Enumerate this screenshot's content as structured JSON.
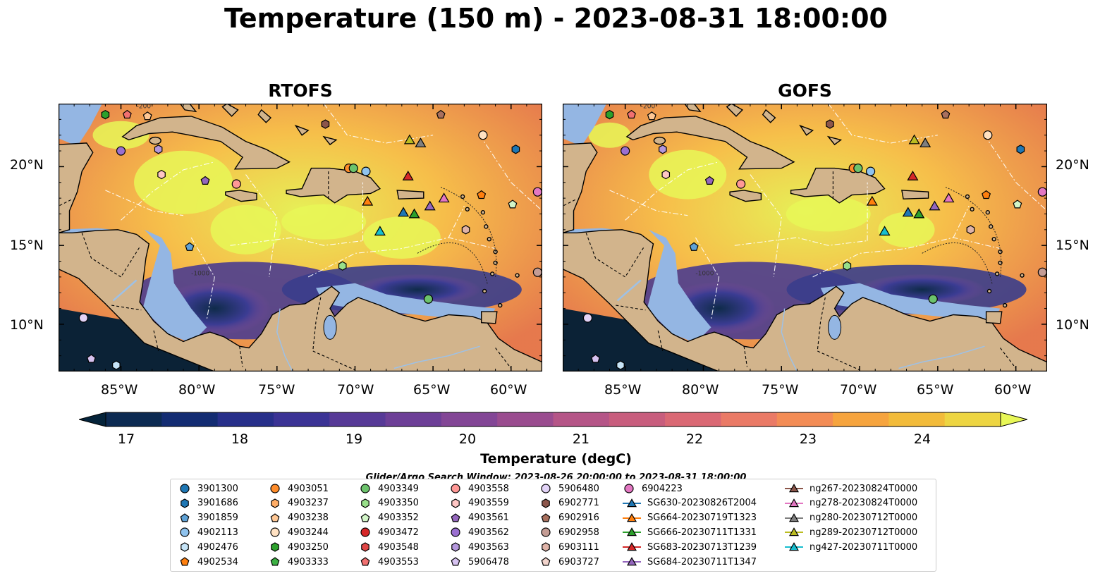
{
  "title": "Temperature (150 m) - 2023-08-31 18:00:00",
  "panels": [
    {
      "id": "rtofs",
      "title": "RTOFS"
    },
    {
      "id": "gofs",
      "title": "GOFS"
    }
  ],
  "map": {
    "lon_range": [
      -89,
      -58
    ],
    "lat_range": [
      7,
      24
    ],
    "lon_ticks": [
      "85°W",
      "80°W",
      "75°W",
      "70°W",
      "65°W",
      "60°W"
    ],
    "lat_ticks": [
      "20°N",
      "15°N",
      "10°N"
    ],
    "contour_labels": [
      "-200",
      "-1000",
      "-100"
    ],
    "colors": {
      "land": "#d2b48c",
      "shelf": "#94b6e3",
      "deep": "#0b2236",
      "hot": "#e8f757"
    }
  },
  "colorbar": {
    "label": "Temperature (degC)",
    "ticks": [
      "17",
      "18",
      "19",
      "20",
      "21",
      "22",
      "23",
      "24"
    ],
    "min": 16.5,
    "max": 24.5,
    "step": 0.5,
    "extend": "both"
  },
  "search_window": "Glider/Argo Search Window: 2023-08-26 20:00:00 to 2023-08-31 18:00:00",
  "legend": {
    "columns": [
      [
        {
          "label": "3901300",
          "marker": "circle",
          "color": "#1f77b4"
        },
        {
          "label": "3901686",
          "marker": "hexagon",
          "color": "#1f77b4"
        },
        {
          "label": "3901859",
          "marker": "pentagon",
          "color": "#5fa2d6"
        },
        {
          "label": "4902113",
          "marker": "circle",
          "color": "#8fc3ee"
        },
        {
          "label": "4902476",
          "marker": "hexagon",
          "color": "#c6e4f7"
        },
        {
          "label": "4902534",
          "marker": "pentagon",
          "color": "#ff7f0e"
        }
      ],
      [
        {
          "label": "4903051",
          "marker": "circle",
          "color": "#ff8c2a"
        },
        {
          "label": "4903237",
          "marker": "hexagon",
          "color": "#ffad66"
        },
        {
          "label": "4903238",
          "marker": "pentagon",
          "color": "#ffc794"
        },
        {
          "label": "4903244",
          "marker": "circle",
          "color": "#ffe1c2"
        },
        {
          "label": "4903250",
          "marker": "hexagon",
          "color": "#2ca02c"
        },
        {
          "label": "4903333",
          "marker": "pentagon",
          "color": "#3cb043"
        }
      ],
      [
        {
          "label": "4903349",
          "marker": "circle",
          "color": "#6cc36c"
        },
        {
          "label": "4903350",
          "marker": "hexagon",
          "color": "#98df8a"
        },
        {
          "label": "4903352",
          "marker": "pentagon",
          "color": "#d2f5c8"
        },
        {
          "label": "4903472",
          "marker": "circle",
          "color": "#d62728"
        },
        {
          "label": "4903548",
          "marker": "hexagon",
          "color": "#e04646"
        },
        {
          "label": "4903553",
          "marker": "pentagon",
          "color": "#f07070"
        }
      ],
      [
        {
          "label": "4903558",
          "marker": "circle",
          "color": "#ff9896"
        },
        {
          "label": "4903559",
          "marker": "hexagon",
          "color": "#ffc6c4"
        },
        {
          "label": "4903561",
          "marker": "pentagon",
          "color": "#9467bd"
        },
        {
          "label": "4903562",
          "marker": "circle",
          "color": "#9a6fd0"
        },
        {
          "label": "4903563",
          "marker": "hexagon",
          "color": "#b497dc"
        },
        {
          "label": "5906478",
          "marker": "pentagon",
          "color": "#d6c2f0"
        }
      ],
      [
        {
          "label": "5906480",
          "marker": "circle",
          "color": "#e2d3f7"
        },
        {
          "label": "6902771",
          "marker": "hexagon",
          "color": "#8c564b"
        },
        {
          "label": "6902916",
          "marker": "pentagon",
          "color": "#a8705e"
        },
        {
          "label": "6902958",
          "marker": "circle",
          "color": "#c49c94"
        },
        {
          "label": "6903111",
          "marker": "hexagon",
          "color": "#dfb3a8"
        },
        {
          "label": "6903727",
          "marker": "pentagon",
          "color": "#f2d4cc"
        }
      ],
      [
        {
          "label": "6904223",
          "marker": "circle",
          "color": "#e377c2"
        },
        {
          "label": "SG630-20230826T2004",
          "marker": "triangle",
          "color": "#1f77b4"
        },
        {
          "label": "SG664-20230719T1323",
          "marker": "triangle",
          "color": "#ff7f0e"
        },
        {
          "label": "SG666-20230711T1331",
          "marker": "triangle",
          "color": "#2ca02c"
        },
        {
          "label": "SG683-20230713T1239",
          "marker": "triangle",
          "color": "#d62728"
        },
        {
          "label": "SG684-20230711T1347",
          "marker": "triangle",
          "color": "#9467bd"
        }
      ],
      [
        {
          "label": "ng267-20230824T0000",
          "marker": "triangle",
          "color": "#8c564b"
        },
        {
          "label": "ng278-20230824T0000",
          "marker": "triangle",
          "color": "#e377c2"
        },
        {
          "label": "ng280-20230712T0000",
          "marker": "triangle",
          "color": "#7f7f7f"
        },
        {
          "label": "ng289-20230712T0000",
          "marker": "triangle",
          "color": "#bcbd22"
        },
        {
          "label": "ng427-20230711T0000",
          "marker": "triangle",
          "color": "#17becf"
        }
      ]
    ]
  },
  "observations": [
    {
      "lon": -86.0,
      "lat": 23.3,
      "marker": "hexagon",
      "color": "#2ca02c"
    },
    {
      "lon": -84.6,
      "lat": 23.3,
      "marker": "pentagon",
      "color": "#f07070"
    },
    {
      "lon": -83.3,
      "lat": 23.2,
      "marker": "pentagon",
      "color": "#ffc794"
    },
    {
      "lon": -85.0,
      "lat": 21.0,
      "marker": "circle",
      "color": "#9a6fd0"
    },
    {
      "lon": -82.6,
      "lat": 21.1,
      "marker": "hexagon",
      "color": "#b497dc"
    },
    {
      "lon": -82.4,
      "lat": 19.5,
      "marker": "hexagon",
      "color": "#ffc6c4"
    },
    {
      "lon": -79.6,
      "lat": 19.1,
      "marker": "pentagon",
      "color": "#9467bd"
    },
    {
      "lon": -77.6,
      "lat": 18.9,
      "marker": "circle",
      "color": "#ff9896"
    },
    {
      "lon": -71.9,
      "lat": 22.7,
      "marker": "hexagon",
      "color": "#8c564b"
    },
    {
      "lon": -64.5,
      "lat": 23.3,
      "marker": "pentagon",
      "color": "#a8705e"
    },
    {
      "lon": -70.4,
      "lat": 19.9,
      "marker": "circle",
      "color": "#ff8c2a"
    },
    {
      "lon": -70.1,
      "lat": 19.9,
      "marker": "circle",
      "color": "#6cc36c"
    },
    {
      "lon": -69.3,
      "lat": 19.7,
      "marker": "circle",
      "color": "#8fc3ee"
    },
    {
      "lon": -61.8,
      "lat": 22.0,
      "marker": "circle",
      "color": "#ffe1c2"
    },
    {
      "lon": -59.7,
      "lat": 21.1,
      "marker": "hexagon",
      "color": "#1f77b4"
    },
    {
      "lon": -58.3,
      "lat": 18.4,
      "marker": "circle",
      "color": "#e377c2"
    },
    {
      "lon": -61.9,
      "lat": 18.2,
      "marker": "pentagon",
      "color": "#ff7f0e"
    },
    {
      "lon": -59.9,
      "lat": 17.6,
      "marker": "pentagon",
      "color": "#d2f5c8"
    },
    {
      "lon": -62.9,
      "lat": 16.0,
      "marker": "hexagon",
      "color": "#dfb3a8"
    },
    {
      "lon": -58.3,
      "lat": 13.3,
      "marker": "circle",
      "color": "#c49c94"
    },
    {
      "lon": -80.6,
      "lat": 14.9,
      "marker": "pentagon",
      "color": "#5fa2d6"
    },
    {
      "lon": -70.8,
      "lat": 13.7,
      "marker": "hexagon",
      "color": "#98df8a"
    },
    {
      "lon": -65.3,
      "lat": 11.6,
      "marker": "circle",
      "color": "#6cc36c"
    },
    {
      "lon": -87.4,
      "lat": 10.4,
      "marker": "circle",
      "color": "#e2d3f7"
    },
    {
      "lon": -86.9,
      "lat": 7.8,
      "marker": "pentagon",
      "color": "#d6c2f0"
    },
    {
      "lon": -85.3,
      "lat": 7.4,
      "marker": "hexagon",
      "color": "#c6e4f7"
    },
    {
      "lon": -66.5,
      "lat": 21.7,
      "marker": "triangle",
      "color": "#bcbd22"
    },
    {
      "lon": -65.8,
      "lat": 21.5,
      "marker": "triangle",
      "color": "#7f7f7f"
    },
    {
      "lon": -66.6,
      "lat": 19.4,
      "marker": "triangle",
      "color": "#d62728"
    },
    {
      "lon": -69.2,
      "lat": 17.8,
      "marker": "triangle",
      "color": "#ff7f0e"
    },
    {
      "lon": -66.9,
      "lat": 17.1,
      "marker": "triangle",
      "color": "#1f77b4"
    },
    {
      "lon": -66.2,
      "lat": 17.0,
      "marker": "triangle",
      "color": "#2ca02c"
    },
    {
      "lon": -65.2,
      "lat": 17.5,
      "marker": "triangle",
      "color": "#9467bd"
    },
    {
      "lon": -64.3,
      "lat": 18.0,
      "marker": "triangle",
      "color": "#e377c2"
    },
    {
      "lon": -68.4,
      "lat": 15.9,
      "marker": "triangle",
      "color": "#17becf"
    }
  ]
}
